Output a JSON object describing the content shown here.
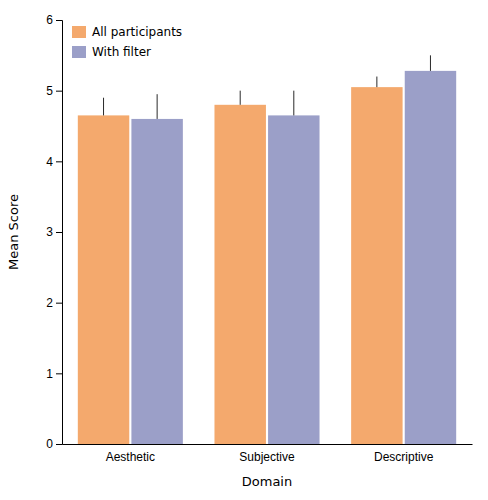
{
  "chart_data": {
    "type": "bar",
    "xlabel": "Domain",
    "ylabel": "Mean Score",
    "categories": [
      "Aesthetic",
      "Subjective",
      "Descriptive"
    ],
    "series": [
      {
        "name": "All participants",
        "color": "#F4A96D",
        "values": [
          4.65,
          4.8,
          5.05
        ],
        "errors": [
          0.25,
          0.2,
          0.15
        ]
      },
      {
        "name": "With filter",
        "color": "#9B9FC8",
        "values": [
          4.6,
          4.65,
          5.28
        ],
        "errors": [
          0.35,
          0.35,
          0.22
        ]
      }
    ],
    "ylim": [
      0,
      6
    ],
    "yticks": [
      0,
      1,
      2,
      3,
      4,
      5,
      6
    ],
    "legend": "upper left"
  }
}
